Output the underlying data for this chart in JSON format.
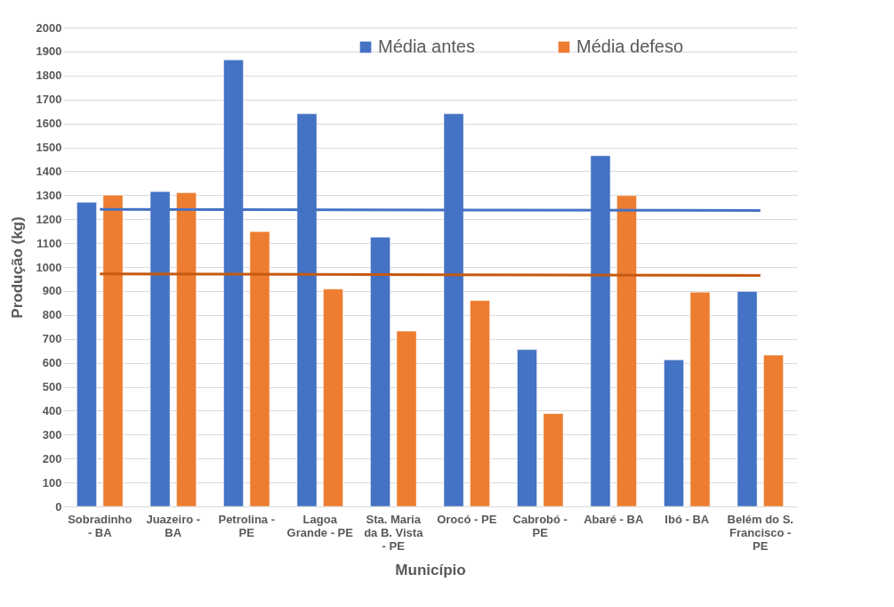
{
  "chart_data": {
    "type": "bar",
    "xlabel": "Município",
    "ylabel": "Produção (kg)",
    "categories": [
      "Sobradinho - BA",
      "Juazeiro - BA",
      "Petrolina - PE",
      "Lagoa Grande - PE",
      "Sta. Maria da B. Vista - PE",
      "Orocó - PE",
      "Cabrobó - PE",
      "Abaré - BA",
      "Ibó - BA",
      "Belém do S. Francisco - PE"
    ],
    "series": [
      {
        "name": "Média antes",
        "color": "#4472c4",
        "values": [
          1270,
          1315,
          1865,
          1640,
          1125,
          1640,
          655,
          1465,
          612,
          898
        ]
      },
      {
        "name": "Média defeso",
        "color": "#ed7d31",
        "values": [
          1300,
          1310,
          1148,
          908,
          732,
          860,
          388,
          1298,
          895,
          632
        ]
      },
      {
        "type": "line",
        "color": "#4472c4",
        "x": [
          "Sobradinho - BA",
          "Belém do S. Francisco - PE"
        ],
        "values": [
          1241,
          1236
        ]
      },
      {
        "type": "line",
        "color": "#c55a11",
        "x": [
          "Sobradinho - BA",
          "Belém do S. Francisco - PE"
        ],
        "values": [
          971,
          965
        ]
      }
    ],
    "ylim": [
      0,
      2000
    ],
    "yticks": [
      0,
      100,
      200,
      300,
      400,
      500,
      600,
      700,
      800,
      900,
      1000,
      1100,
      1200,
      1300,
      1400,
      1500,
      1600,
      1700,
      1800,
      1900,
      2000
    ],
    "grid": "y",
    "legend": "top"
  }
}
